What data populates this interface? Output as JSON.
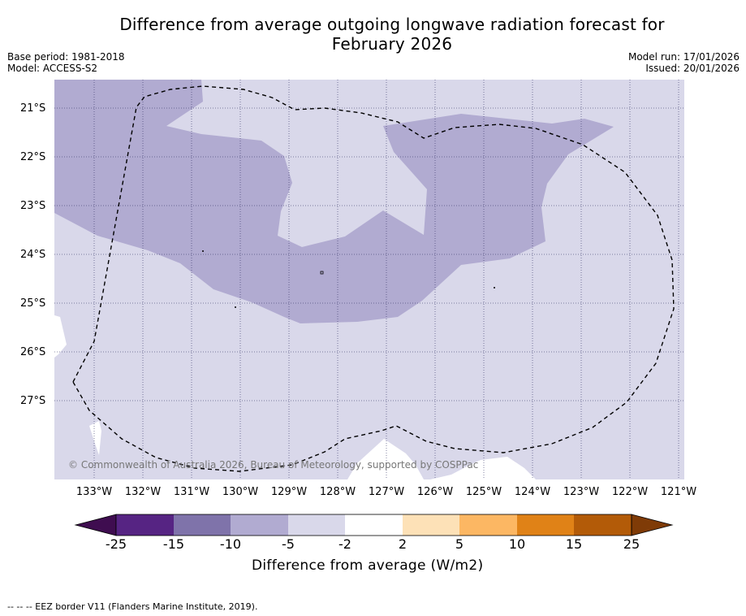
{
  "title_line1": "Difference from average outgoing longwave radiation forecast for",
  "title_line2": "February 2026",
  "meta": {
    "base_period": "Base period: 1981-2018",
    "model": "Model: ACCESS-S2",
    "model_run": "Model run: 17/01/2026",
    "issued": "Issued: 20/01/2026"
  },
  "axes": {
    "latitudes": [
      "21°S",
      "22°S",
      "23°S",
      "24°S",
      "25°S",
      "26°S",
      "27°S"
    ],
    "longitudes": [
      "133°W",
      "132°W",
      "131°W",
      "130°W",
      "129°W",
      "128°W",
      "127°W",
      "126°W",
      "125°W",
      "124°W",
      "123°W",
      "122°W",
      "121°W"
    ]
  },
  "copyright": "© Commonwealth of Australia 2026, Bureau of Meteorology, supported by COSPPac",
  "colorbar": {
    "title": "Difference from average (W/m2)",
    "labels": [
      "-25",
      "-15",
      "-10",
      "-5",
      "-2",
      "2",
      "5",
      "10",
      "15",
      "25"
    ],
    "colors": [
      "#3f0d50",
      "#562483",
      "#7f73aa",
      "#b1abd1",
      "#d9d8ea",
      "#ffffff",
      "#fde1b7",
      "#fcb763",
      "#e08217",
      "#b35b08",
      "#7f3b07"
    ]
  },
  "footnote": "--  --  -- EEZ border V11 (Flanders Marine Institute, 2019)."
}
